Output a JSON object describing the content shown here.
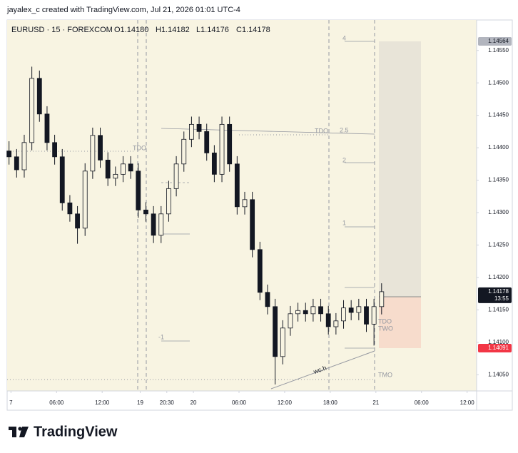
{
  "header": {
    "attribution": "jayalex_c created with TradingView.com, Jul 21, 2026 01:01 UTC-4"
  },
  "logo": "TradingView",
  "chart_data": {
    "type": "candlestick",
    "symbol": "EURUSD · 15 · FOREXCOM",
    "ohlc_labels": [
      "O1.14180",
      "H1.14182",
      "L1.14176",
      "C1.14178"
    ],
    "x": [
      0,
      4,
      8,
      12,
      16,
      20,
      24,
      28,
      32,
      36,
      40,
      44,
      48,
      52,
      56,
      60,
      64,
      68,
      72,
      76,
      80,
      84,
      88,
      92,
      96,
      100,
      104,
      108,
      112,
      116,
      120,
      124,
      128,
      132,
      136,
      140,
      144,
      148,
      152,
      156,
      160,
      164,
      168,
      172,
      176,
      180,
      184,
      188,
      192,
      196
    ],
    "open": [
      1.14395,
      1.14386,
      1.14366,
      1.14408,
      1.14507,
      1.14452,
      1.14408,
      1.14386,
      1.14315,
      1.14298,
      1.14276,
      1.14364,
      1.14419,
      1.14381,
      1.14353,
      1.14359,
      1.14375,
      1.14364,
      1.14304,
      1.14298,
      1.14265,
      1.14298,
      1.14337,
      1.14375,
      1.14413,
      1.14436,
      1.14425,
      1.14392,
      1.14359,
      1.14436,
      1.14375,
      1.14309,
      1.1432,
      1.14243,
      1.14177,
      1.14155,
      1.14078,
      1.14122,
      1.14144,
      1.14149,
      1.14144,
      1.14155,
      1.14144,
      1.14124,
      1.14133,
      1.14153,
      1.14146,
      1.14155,
      1.14128,
      1.14155
    ],
    "high": [
      1.1441,
      1.14398,
      1.1442,
      1.14525,
      1.14519,
      1.14464,
      1.1442,
      1.14398,
      1.14327,
      1.1431,
      1.14376,
      1.14431,
      1.14431,
      1.14393,
      1.14371,
      1.14387,
      1.14387,
      1.14376,
      1.14316,
      1.1431,
      1.1431,
      1.14349,
      1.14387,
      1.14425,
      1.14448,
      1.14448,
      1.14437,
      1.14404,
      1.14448,
      1.14448,
      1.14387,
      1.14332,
      1.14332,
      1.14255,
      1.14189,
      1.14167,
      1.14134,
      1.14156,
      1.14161,
      1.14161,
      1.14167,
      1.14167,
      1.14156,
      1.14145,
      1.14165,
      1.14165,
      1.14167,
      1.14167,
      1.14167,
      1.14191
    ],
    "low": [
      1.14374,
      1.14354,
      1.14354,
      1.14396,
      1.1444,
      1.14396,
      1.14374,
      1.14303,
      1.14286,
      1.14252,
      1.14264,
      1.14352,
      1.14369,
      1.14341,
      1.14341,
      1.14347,
      1.14352,
      1.14292,
      1.14286,
      1.14253,
      1.14253,
      1.14286,
      1.14325,
      1.14363,
      1.14401,
      1.14413,
      1.1438,
      1.14347,
      1.14347,
      1.14363,
      1.14297,
      1.14297,
      1.14231,
      1.14165,
      1.14143,
      1.14035,
      1.14066,
      1.1411,
      1.14132,
      1.14132,
      1.14132,
      1.14132,
      1.14112,
      1.14112,
      1.14121,
      1.14134,
      1.14134,
      1.14116,
      1.14095,
      1.14143
    ],
    "close": [
      1.14386,
      1.14366,
      1.14408,
      1.14507,
      1.14452,
      1.14408,
      1.14386,
      1.14315,
      1.14298,
      1.14276,
      1.14364,
      1.14419,
      1.14381,
      1.14353,
      1.14359,
      1.14375,
      1.14364,
      1.14304,
      1.14298,
      1.14265,
      1.14298,
      1.14337,
      1.14375,
      1.14413,
      1.14436,
      1.14425,
      1.14392,
      1.14359,
      1.14436,
      1.14375,
      1.14309,
      1.1432,
      1.14243,
      1.14177,
      1.14155,
      1.14078,
      1.14122,
      1.14144,
      1.14149,
      1.14144,
      1.14155,
      1.14144,
      1.14124,
      1.14133,
      1.14153,
      1.14146,
      1.14155,
      1.14128,
      1.14155,
      1.14178
    ],
    "color": "#131722",
    "xlim": [
      -1,
      246
    ],
    "xticks": [
      {
        "value": 1,
        "label": "7"
      },
      {
        "value": 25,
        "label": "06:00"
      },
      {
        "value": 49,
        "label": "12:00"
      },
      {
        "value": 69,
        "label": "19"
      },
      {
        "value": 83,
        "label": "20:30"
      },
      {
        "value": 97,
        "label": "20"
      },
      {
        "value": 121,
        "label": "06:00"
      },
      {
        "value": 145,
        "label": "12:00"
      },
      {
        "value": 169,
        "label": "18:00"
      },
      {
        "value": 193,
        "label": "21"
      },
      {
        "value": 217,
        "label": "06:00"
      },
      {
        "value": 241,
        "label": "12:00"
      }
    ],
    "ylim": [
      1.14025,
      1.14597
    ],
    "yticks": [
      {
        "value": 1.1455,
        "label": "1.14550"
      },
      {
        "value": 1.145,
        "label": "1.14500"
      },
      {
        "value": 1.1445,
        "label": "1.14450"
      },
      {
        "value": 1.144,
        "label": "1.14400"
      },
      {
        "value": 1.1435,
        "label": "1.14350"
      },
      {
        "value": 1.143,
        "label": "1.14300"
      },
      {
        "value": 1.1425,
        "label": "1.14250"
      },
      {
        "value": 1.142,
        "label": "1.14200"
      },
      {
        "value": 1.1415,
        "label": "1.14150"
      },
      {
        "value": 1.141,
        "label": "1.14100"
      },
      {
        "value": 1.1405,
        "label": "1.14050"
      }
    ],
    "price_labels": [
      {
        "value": 1.14564,
        "label": "1.14564",
        "color": "#b2b5be"
      },
      {
        "value": 1.14178,
        "label": "1.14178",
        "color": "#131722"
      },
      {
        "value": 1.14091,
        "label": "1.14091",
        "color": "#f23645"
      }
    ],
    "countdown": "13:55",
    "fib_levels": [
      4,
      2.5,
      2,
      1,
      -1
    ],
    "annotations": [
      "TDO",
      "TDO",
      "TDO",
      "TWO",
      "TMO",
      "wc.h"
    ]
  }
}
